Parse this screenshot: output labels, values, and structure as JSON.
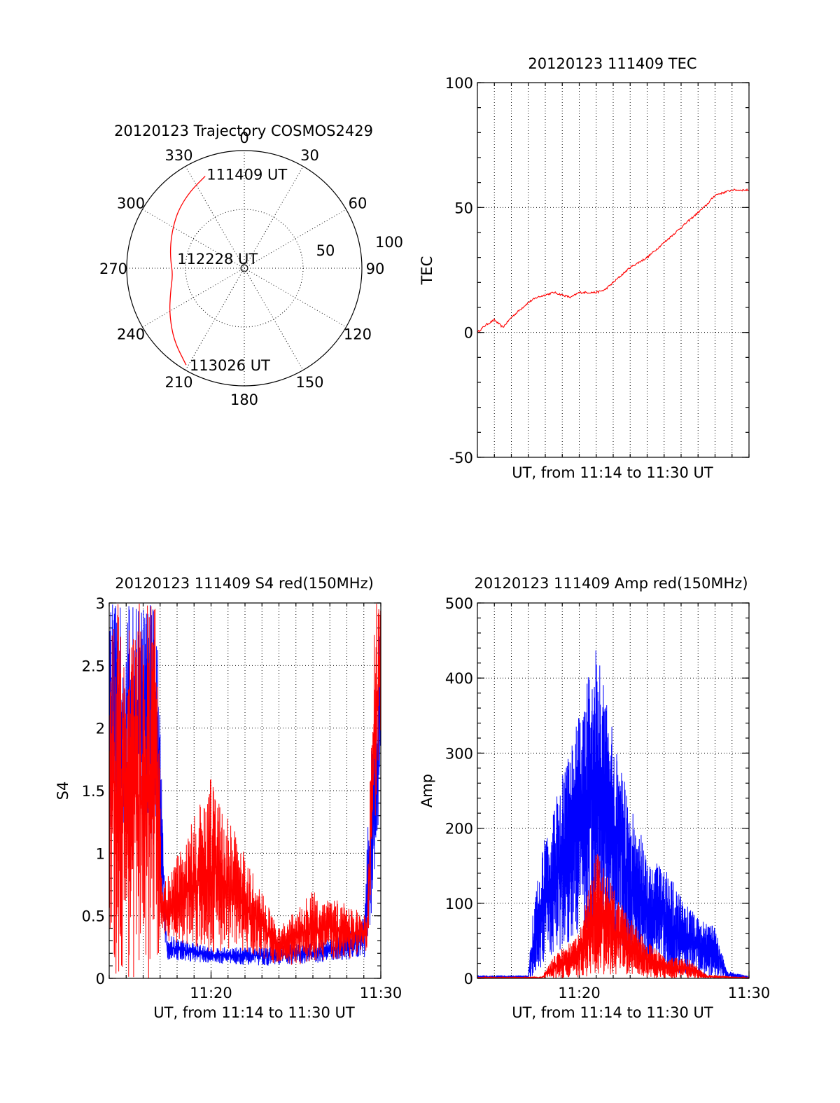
{
  "colors": {
    "red": "#ff0000",
    "blue": "#0000ff",
    "axis": "#000000"
  },
  "chart_data": [
    {
      "id": "trajectory",
      "type": "polar",
      "title": "20120123 Trajectory COSMOS2429",
      "azimuth_labels": [
        "0",
        "30",
        "60",
        "90",
        "120",
        "150",
        "180",
        "210",
        "240",
        "270",
        "300",
        "330"
      ],
      "radial_labels": [
        "50",
        "100"
      ],
      "points": [
        {
          "label": "111409 UT",
          "az": 337,
          "r": 85
        },
        {
          "label": "112228 UT",
          "az": 270,
          "r": 60
        },
        {
          "label": "113026 UT",
          "az": 211,
          "r": 96
        }
      ],
      "series": [
        {
          "color": "red",
          "az": [
            337,
            325,
            312,
            300,
            288,
            276,
            265,
            252,
            238,
            224,
            211
          ],
          "r": [
            85,
            80,
            75,
            70,
            66,
            63,
            61,
            66,
            75,
            86,
            96
          ]
        }
      ]
    },
    {
      "id": "tec",
      "type": "line",
      "title": "20120123 111409 TEC",
      "ylabel": "TEC",
      "xlabel": "UT, from 11:14 to 11:30 UT",
      "ylim": [
        -50,
        100
      ],
      "yticks": [
        "-50",
        "0",
        "50",
        "100"
      ],
      "xlim": [
        0,
        16
      ],
      "series": [
        {
          "color": "red",
          "x": [
            0,
            0.5,
            1,
            1.5,
            2,
            2.5,
            3,
            3.5,
            4,
            4.5,
            5,
            5.5,
            6,
            6.5,
            7,
            7.5,
            8,
            8.5,
            9,
            9.5,
            10,
            10.5,
            11,
            11.5,
            12,
            12.5,
            13,
            13.5,
            14,
            14.5,
            15,
            15.5,
            16
          ],
          "y": [
            0,
            3,
            5,
            2,
            6,
            9,
            12,
            14,
            15,
            16,
            15,
            14,
            16,
            16,
            16,
            17,
            20,
            23,
            26,
            28,
            30,
            33,
            36,
            39,
            42,
            45,
            48,
            51,
            55,
            56,
            57,
            57,
            57
          ]
        }
      ]
    },
    {
      "id": "s4",
      "type": "line",
      "title": "20120123 111409 S4 red(150MHz)",
      "ylabel": "S4",
      "xlabel": "UT, from 11:14 to 11:30 UT",
      "ylim": [
        0,
        3
      ],
      "yticks": [
        "0",
        "0.5",
        "1",
        "1.5",
        "2",
        "2.5",
        "3"
      ],
      "xlim": [
        0,
        16
      ],
      "xticks": [
        {
          "x": 6,
          "label": "11:20"
        },
        {
          "x": 16,
          "label": "11:30"
        }
      ],
      "series": [
        {
          "color": "blue",
          "envelope": [
            {
              "x": 0,
              "lo": 1.2,
              "hi": 3.0
            },
            {
              "x": 2.8,
              "lo": 1.0,
              "hi": 3.0
            },
            {
              "x": 3.1,
              "lo": 0.5,
              "hi": 1.5
            },
            {
              "x": 3.4,
              "lo": 0.15,
              "hi": 0.35
            },
            {
              "x": 6,
              "lo": 0.12,
              "hi": 0.25
            },
            {
              "x": 9,
              "lo": 0.1,
              "hi": 0.25
            },
            {
              "x": 12,
              "lo": 0.12,
              "hi": 0.3
            },
            {
              "x": 14,
              "lo": 0.15,
              "hi": 0.35
            },
            {
              "x": 15,
              "lo": 0.15,
              "hi": 0.5
            },
            {
              "x": 15.5,
              "lo": 0.4,
              "hi": 2.0
            },
            {
              "x": 16,
              "lo": 1.5,
              "hi": 3.0
            }
          ]
        },
        {
          "color": "red",
          "envelope": [
            {
              "x": 0,
              "lo": 0.0,
              "hi": 3.0
            },
            {
              "x": 2.8,
              "lo": 0.0,
              "hi": 3.0
            },
            {
              "x": 3.1,
              "lo": 0.4,
              "hi": 0.8
            },
            {
              "x": 3.4,
              "lo": 0.3,
              "hi": 0.8
            },
            {
              "x": 6,
              "lo": 0.2,
              "hi": 1.6
            },
            {
              "x": 8,
              "lo": 0.2,
              "hi": 1.0
            },
            {
              "x": 10,
              "lo": 0.1,
              "hi": 0.4
            },
            {
              "x": 12,
              "lo": 0.12,
              "hi": 0.7
            },
            {
              "x": 14,
              "lo": 0.15,
              "hi": 0.6
            },
            {
              "x": 15.2,
              "lo": 0.2,
              "hi": 0.5
            },
            {
              "x": 15.6,
              "lo": 1.0,
              "hi": 3.0
            },
            {
              "x": 16,
              "lo": 2.0,
              "hi": 3.0
            }
          ]
        }
      ]
    },
    {
      "id": "amp",
      "type": "line",
      "title": "20120123 111409 Amp red(150MHz)",
      "ylabel": "Amp",
      "xlabel": "UT, from 11:14 to 11:30 UT",
      "ylim": [
        0,
        500
      ],
      "yticks": [
        "0",
        "100",
        "200",
        "300",
        "400",
        "500"
      ],
      "xlim": [
        0,
        16
      ],
      "xticks": [
        {
          "x": 6,
          "label": "11:20"
        },
        {
          "x": 16,
          "label": "11:30"
        }
      ],
      "series": [
        {
          "color": "blue",
          "envelope": [
            {
              "x": 0,
              "lo": 0,
              "hi": 4
            },
            {
              "x": 3,
              "lo": 0,
              "hi": 4
            },
            {
              "x": 3.3,
              "lo": 0,
              "hi": 100
            },
            {
              "x": 4,
              "lo": 20,
              "hi": 190
            },
            {
              "x": 5,
              "lo": 40,
              "hi": 270
            },
            {
              "x": 6,
              "lo": 60,
              "hi": 360
            },
            {
              "x": 7,
              "lo": 50,
              "hi": 440
            },
            {
              "x": 8,
              "lo": 40,
              "hi": 330
            },
            {
              "x": 9,
              "lo": 30,
              "hi": 230
            },
            {
              "x": 10,
              "lo": 20,
              "hi": 170
            },
            {
              "x": 11,
              "lo": 10,
              "hi": 150
            },
            {
              "x": 12,
              "lo": 5,
              "hi": 110
            },
            {
              "x": 13,
              "lo": 5,
              "hi": 80
            },
            {
              "x": 14,
              "lo": 0,
              "hi": 70
            },
            {
              "x": 14.7,
              "lo": 0,
              "hi": 10
            },
            {
              "x": 16,
              "lo": 0,
              "hi": 3
            }
          ]
        },
        {
          "color": "red",
          "envelope": [
            {
              "x": 0,
              "lo": 0,
              "hi": 2
            },
            {
              "x": 3.8,
              "lo": 0,
              "hi": 2
            },
            {
              "x": 4.5,
              "lo": 0,
              "hi": 30
            },
            {
              "x": 6,
              "lo": 0,
              "hi": 60
            },
            {
              "x": 7,
              "lo": 5,
              "hi": 170
            },
            {
              "x": 8,
              "lo": 5,
              "hi": 120
            },
            {
              "x": 9,
              "lo": 5,
              "hi": 80
            },
            {
              "x": 10,
              "lo": 0,
              "hi": 50
            },
            {
              "x": 11,
              "lo": 0,
              "hi": 30
            },
            {
              "x": 12.5,
              "lo": 0,
              "hi": 25
            },
            {
              "x": 13.5,
              "lo": 0,
              "hi": 5
            },
            {
              "x": 16,
              "lo": 0,
              "hi": 1
            }
          ]
        }
      ]
    }
  ]
}
